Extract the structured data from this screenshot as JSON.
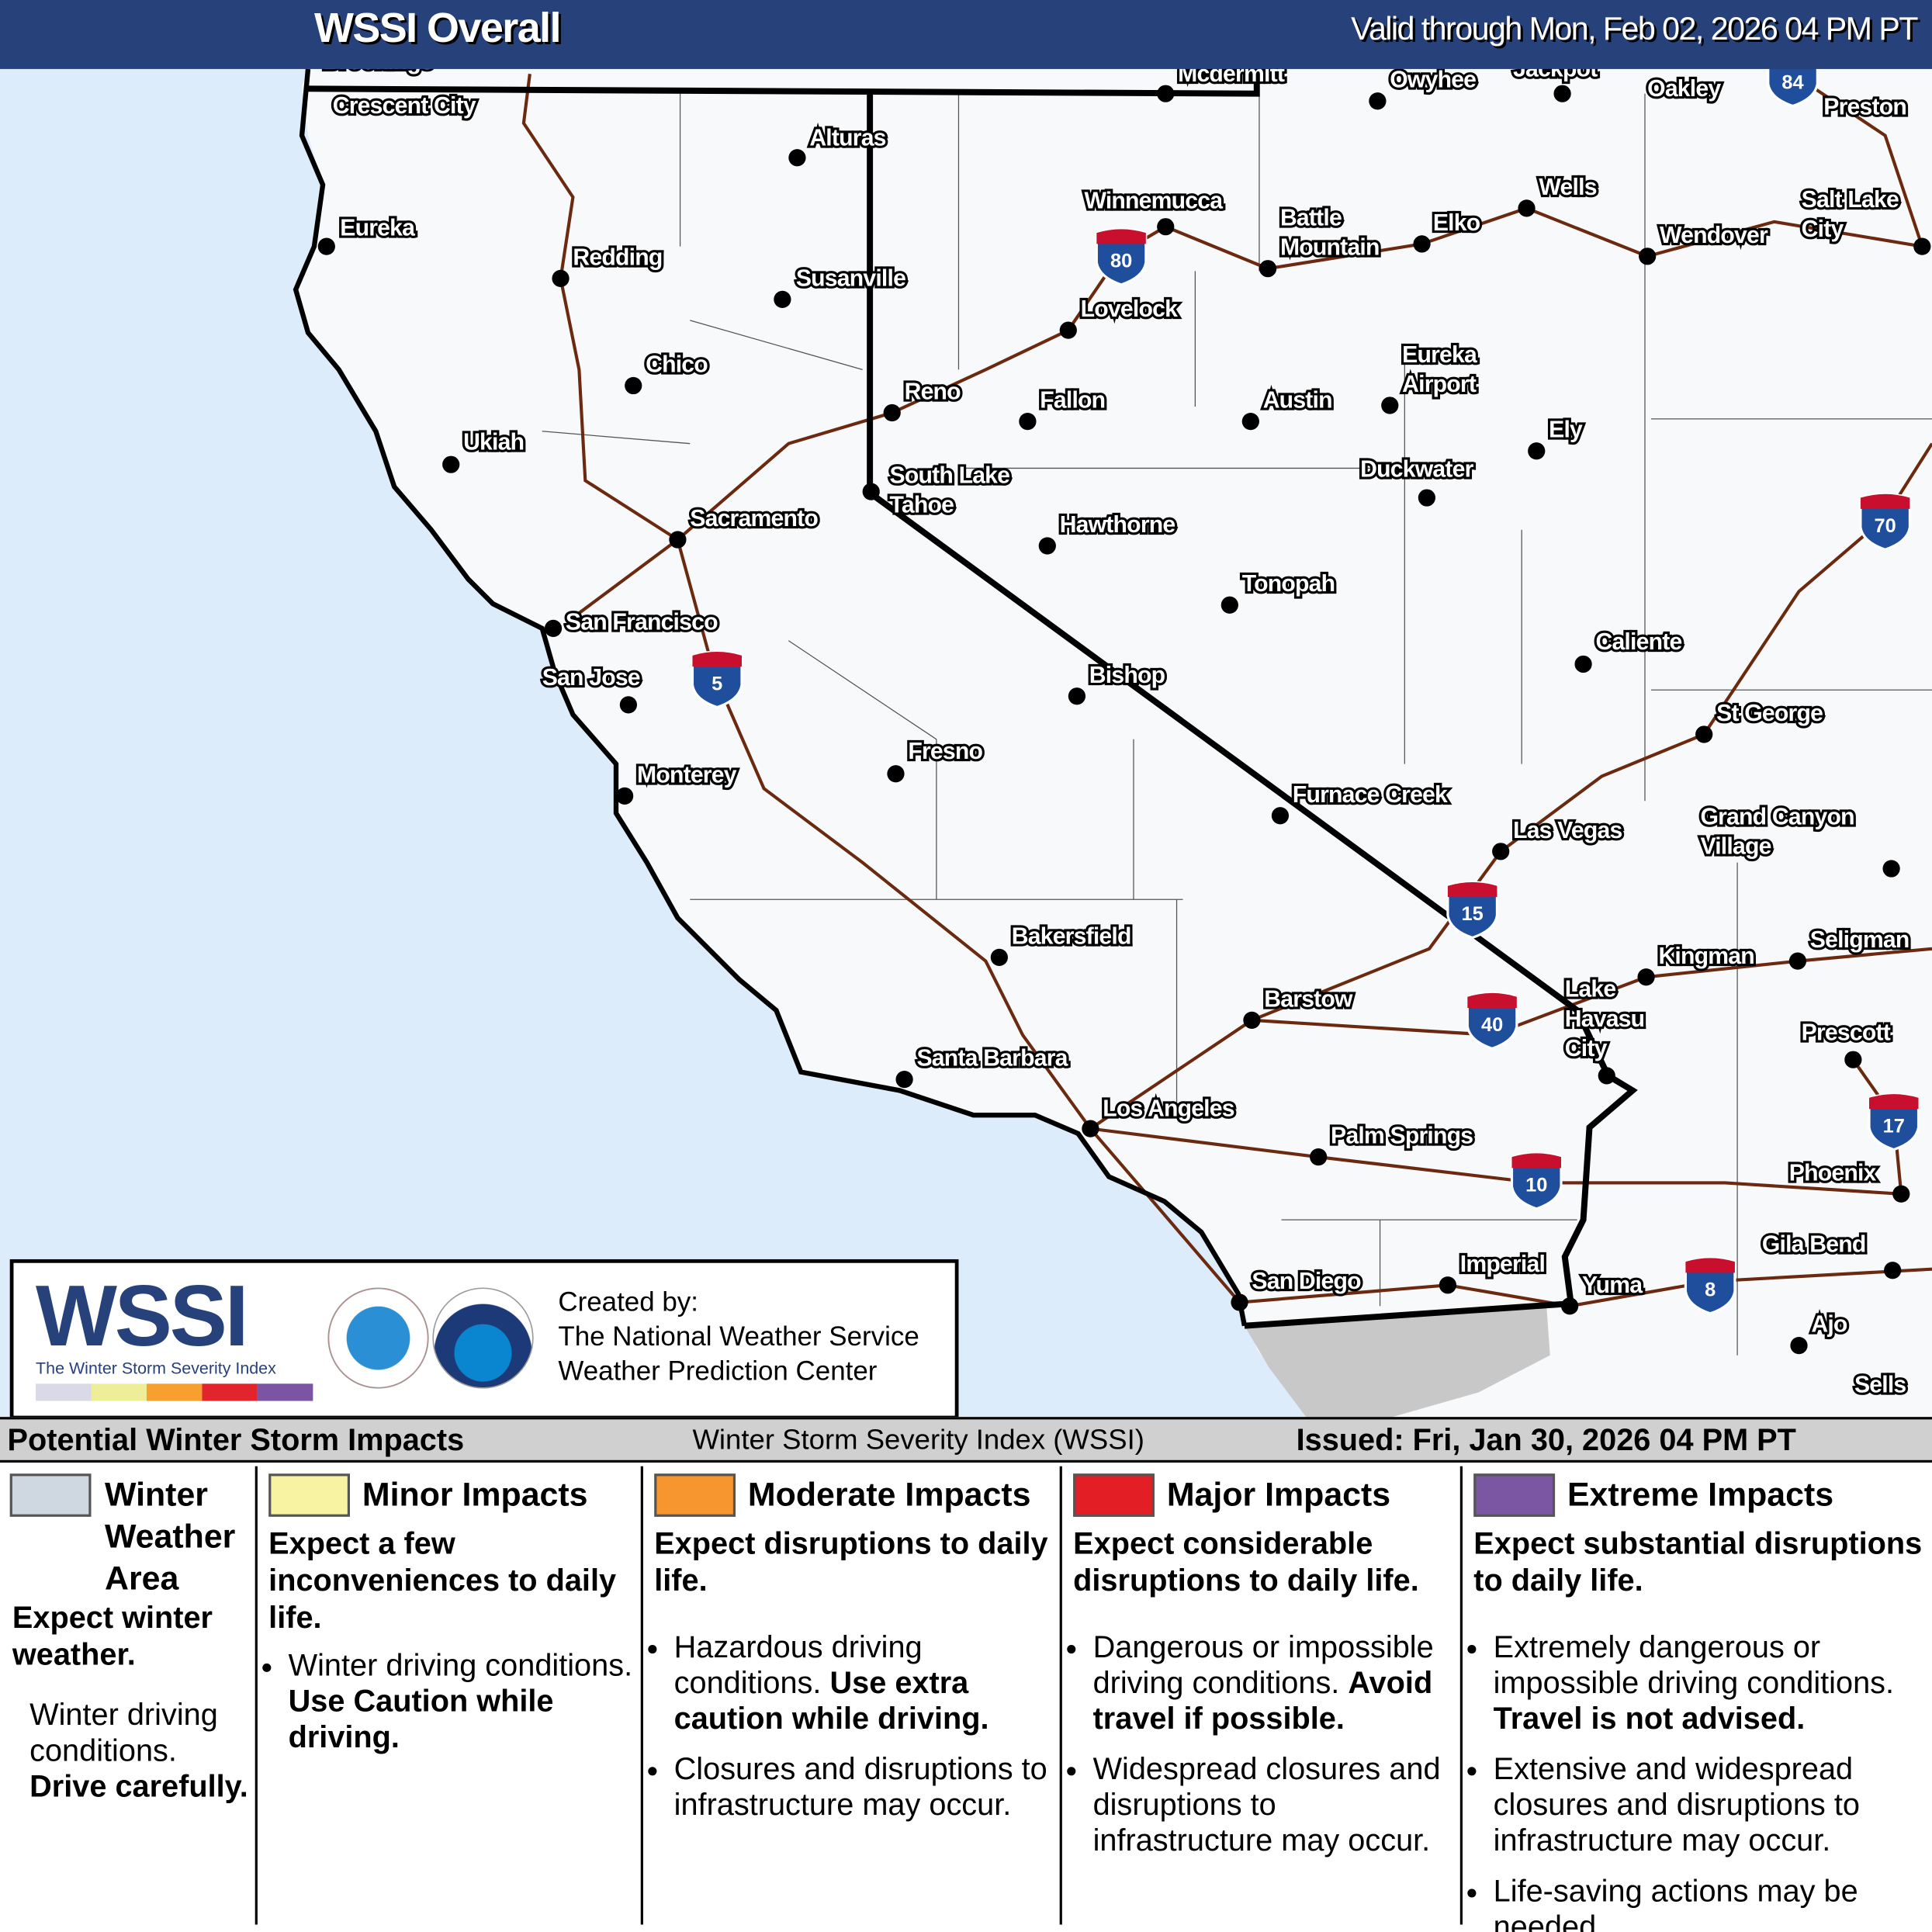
{
  "header": {
    "title": "WSSI Overall",
    "valid": "Valid through Mon, Feb 02, 2026 04 PM PT"
  },
  "colors": {
    "header_bg": "#27417a",
    "ocean": "#dcecfa",
    "land": "#f8f9fb",
    "mexico": "#c8c8c8",
    "roads": "#6b2a10",
    "interstate_shield": "#1f4e9c",
    "interstate_top": "#c8102e"
  },
  "map": {
    "cities": [
      "Brookings",
      "Crescent City",
      "Alturas",
      "Mcdermitt",
      "Owyhee",
      "Jackpot",
      "Oakley",
      "Preston",
      "Eureka",
      "Redding",
      "Susanville",
      "Winnemucca",
      "Battle Mountain",
      "Elko",
      "Wells",
      "Wendover",
      "Salt Lake City",
      "Lovelock",
      "Chico",
      "Reno",
      "Fallon",
      "Austin",
      "Eureka Airport",
      "Ely",
      "Ukiah",
      "South Lake Tahoe",
      "Duckwater",
      "Sacramento",
      "Hawthorne",
      "Tonopah",
      "San Francisco",
      "Caliente",
      "San Jose",
      "Bishop",
      "St George",
      "Fresno",
      "Monterey",
      "Furnace Creek",
      "Grand Canyon Village",
      "Las Vegas",
      "Bakersfield",
      "Kingman",
      "Seligman",
      "Lake Havasu City",
      "Barstow",
      "Prescott",
      "Santa Barbara",
      "Los Angeles",
      "Palm Springs",
      "Phoenix",
      "Gila Bend",
      "San Diego",
      "Imperial",
      "Yuma",
      "Ajo",
      "Sells"
    ],
    "interstates": [
      "84",
      "80",
      "70",
      "5",
      "15",
      "40",
      "10",
      "17",
      "8"
    ]
  },
  "logo": {
    "wordmark": "WSSI",
    "tagline": "The Winter Storm Severity Index",
    "scale_colors": [
      "#d9d9e8",
      "#eeee99",
      "#f7a030",
      "#e2242c",
      "#7b54a3"
    ],
    "nws_seal": "NATIONAL WEATHER SERVICE",
    "noaa_seal": "NOAA",
    "created_by": "Created by:",
    "org1": "The National Weather Service",
    "org2": "Weather Prediction Center"
  },
  "legend": {
    "left": "Potential Winter Storm Impacts",
    "center": "Winter Storm Severity Index (WSSI)",
    "issued": "Issued: Fri, Jan 30, 2026 04 PM PT",
    "categories": [
      {
        "title": "Winter Weather Area",
        "color": "#cfd8e0",
        "head": "Expect winter weather.",
        "text": "Winter driving conditions.",
        "bold": "Drive carefully."
      },
      {
        "title": "Minor Impacts",
        "color": "#f7f3a3",
        "head": "Expect a few inconveniences to daily life.",
        "bullets": [
          {
            "text": "Winter driving conditions. ",
            "bold": "Use Caution while driving."
          }
        ]
      },
      {
        "title": "Moderate Impacts",
        "color": "#f7962e",
        "head": "Expect disruptions to daily life.",
        "bullets": [
          {
            "text": "Hazardous driving conditions. ",
            "bold": "Use extra caution while driving."
          },
          {
            "text": "Closures and disruptions to infrastructure may occur."
          }
        ]
      },
      {
        "title": "Major Impacts",
        "color": "#e31e25",
        "head": "Expect considerable disruptions to daily life.",
        "bullets": [
          {
            "text": "Dangerous or impossible driving conditions. ",
            "bold": "Avoid travel if possible."
          },
          {
            "text": "Widespread closures and disruptions to infrastructure may occur."
          }
        ]
      },
      {
        "title": "Extreme Impacts",
        "color": "#7b56a3",
        "head": "Expect substantial disruptions to daily life.",
        "bullets": [
          {
            "text": "Extremely dangerous or impossible driving conditions. ",
            "bold": "Travel is not advised."
          },
          {
            "text": "Extensive and widespread closures and disruptions to infrastructure may occur."
          },
          {
            "text": "Life-saving actions may be needed."
          }
        ]
      }
    ]
  }
}
